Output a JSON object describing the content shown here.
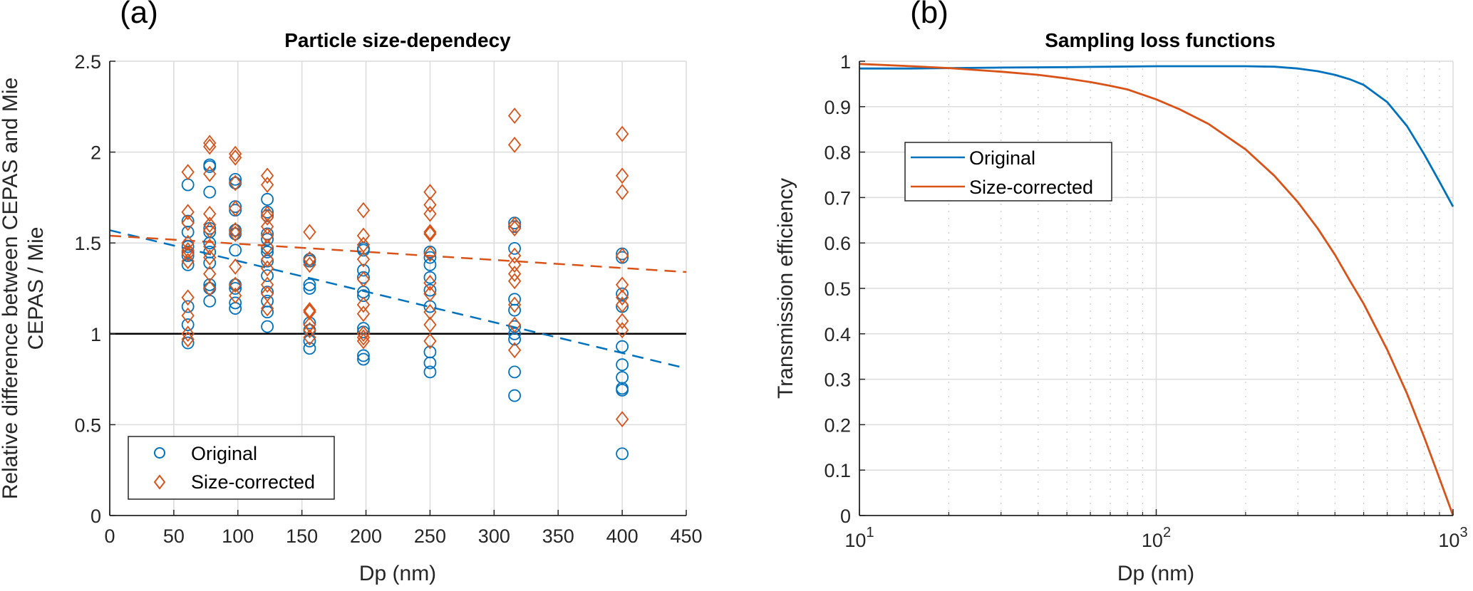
{
  "chart_data": [
    {
      "type": "scatter",
      "panel_label": "(a)",
      "title": "Particle size-dependecy",
      "xlabel": "Dp (nm)",
      "ylabel": [
        "Relative difference between CEPAS and Mie",
        "CEPAS / Mie"
      ],
      "xlim": [
        0,
        450
      ],
      "ylim": [
        0,
        2.5
      ],
      "xticks": [
        0,
        50,
        100,
        150,
        200,
        250,
        300,
        350,
        400,
        450
      ],
      "yticks": [
        0,
        0.5,
        1,
        1.5,
        2,
        2.5
      ],
      "ytick_labels": [
        "0",
        "0.5",
        "1",
        "1.5",
        "2",
        "2.5"
      ],
      "grid": true,
      "legend_position": "bottom-left",
      "reference_line": {
        "y": 1,
        "color": "#000000",
        "style": "solid"
      },
      "series": [
        {
          "name": "Original",
          "marker": "circle",
          "color": "#0072BD",
          "points": [
            [
              61,
              1.82
            ],
            [
              61,
              1.62
            ],
            [
              61,
              1.56
            ],
            [
              61,
              1.48
            ],
            [
              61,
              1.45
            ],
            [
              61,
              1.43
            ],
            [
              61,
              1.38
            ],
            [
              61,
              1.15
            ],
            [
              61,
              1.05
            ],
            [
              61,
              0.95
            ],
            [
              78,
              1.93
            ],
            [
              78,
              1.92
            ],
            [
              78,
              1.78
            ],
            [
              78,
              1.58
            ],
            [
              78,
              1.56
            ],
            [
              78,
              1.5
            ],
            [
              78,
              1.45
            ],
            [
              78,
              1.39
            ],
            [
              78,
              1.27
            ],
            [
              78,
              1.25
            ],
            [
              78,
              1.18
            ],
            [
              98,
              1.85
            ],
            [
              98,
              1.83
            ],
            [
              98,
              1.7
            ],
            [
              98,
              1.68
            ],
            [
              98,
              1.57
            ],
            [
              98,
              1.55
            ],
            [
              98,
              1.46
            ],
            [
              98,
              1.27
            ],
            [
              98,
              1.25
            ],
            [
              98,
              1.17
            ],
            [
              98,
              1.14
            ],
            [
              123,
              1.74
            ],
            [
              123,
              1.67
            ],
            [
              123,
              1.65
            ],
            [
              123,
              1.55
            ],
            [
              123,
              1.52
            ],
            [
              123,
              1.47
            ],
            [
              123,
              1.45
            ],
            [
              123,
              1.4
            ],
            [
              123,
              1.32
            ],
            [
              123,
              1.23
            ],
            [
              123,
              1.18
            ],
            [
              123,
              1.12
            ],
            [
              123,
              1.04
            ],
            [
              156,
              1.41
            ],
            [
              156,
              1.4
            ],
            [
              156,
              1.27
            ],
            [
              156,
              1.25
            ],
            [
              156,
              1.06
            ],
            [
              156,
              1.02
            ],
            [
              156,
              0.96
            ],
            [
              156,
              0.92
            ],
            [
              198,
              1.47
            ],
            [
              198,
              1.46
            ],
            [
              198,
              1.35
            ],
            [
              198,
              1.31
            ],
            [
              198,
              1.23
            ],
            [
              198,
              1.21
            ],
            [
              198,
              1.03
            ],
            [
              198,
              1.01
            ],
            [
              198,
              0.88
            ],
            [
              198,
              0.86
            ],
            [
              250,
              1.45
            ],
            [
              250,
              1.42
            ],
            [
              250,
              1.38
            ],
            [
              250,
              1.31
            ],
            [
              250,
              1.24
            ],
            [
              250,
              1.15
            ],
            [
              250,
              0.9
            ],
            [
              250,
              0.84
            ],
            [
              250,
              0.79
            ],
            [
              316,
              1.61
            ],
            [
              316,
              1.59
            ],
            [
              316,
              1.47
            ],
            [
              316,
              1.19
            ],
            [
              316,
              1.13
            ],
            [
              316,
              1.04
            ],
            [
              316,
              1.0
            ],
            [
              316,
              0.97
            ],
            [
              316,
              0.79
            ],
            [
              316,
              0.66
            ],
            [
              400,
              1.44
            ],
            [
              400,
              1.42
            ],
            [
              400,
              1.22
            ],
            [
              400,
              1.15
            ],
            [
              400,
              0.93
            ],
            [
              400,
              0.83
            ],
            [
              400,
              0.76
            ],
            [
              400,
              0.7
            ],
            [
              400,
              0.69
            ],
            [
              400,
              0.34
            ]
          ],
          "trend_line": {
            "x": [
              0,
              450
            ],
            "y": [
              1.57,
              0.81
            ],
            "style": "dashed"
          }
        },
        {
          "name": "Size-corrected",
          "marker": "diamond",
          "color": "#D95319",
          "points": [
            [
              61,
              1.89
            ],
            [
              61,
              1.67
            ],
            [
              61,
              1.61
            ],
            [
              61,
              1.5
            ],
            [
              61,
              1.46
            ],
            [
              61,
              1.44
            ],
            [
              61,
              1.4
            ],
            [
              61,
              1.2
            ],
            [
              61,
              1.1
            ],
            [
              61,
              1.0
            ],
            [
              61,
              0.97
            ],
            [
              78,
              2.05
            ],
            [
              78,
              2.03
            ],
            [
              78,
              1.88
            ],
            [
              78,
              1.66
            ],
            [
              78,
              1.6
            ],
            [
              78,
              1.57
            ],
            [
              78,
              1.48
            ],
            [
              78,
              1.42
            ],
            [
              78,
              1.33
            ],
            [
              78,
              1.25
            ],
            [
              98,
              1.99
            ],
            [
              98,
              1.97
            ],
            [
              98,
              1.83
            ],
            [
              98,
              1.69
            ],
            [
              98,
              1.57
            ],
            [
              98,
              1.55
            ],
            [
              98,
              1.37
            ],
            [
              98,
              1.27
            ],
            [
              98,
              1.21
            ],
            [
              123,
              1.87
            ],
            [
              123,
              1.82
            ],
            [
              123,
              1.66
            ],
            [
              123,
              1.64
            ],
            [
              123,
              1.59
            ],
            [
              123,
              1.54
            ],
            [
              123,
              1.48
            ],
            [
              123,
              1.41
            ],
            [
              123,
              1.36
            ],
            [
              123,
              1.27
            ],
            [
              123,
              1.22
            ],
            [
              123,
              1.14
            ],
            [
              156,
              1.56
            ],
            [
              156,
              1.41
            ],
            [
              156,
              1.38
            ],
            [
              156,
              1.13
            ],
            [
              156,
              1.12
            ],
            [
              156,
              1.05
            ],
            [
              156,
              1.02
            ],
            [
              156,
              0.98
            ],
            [
              198,
              1.68
            ],
            [
              198,
              1.54
            ],
            [
              198,
              1.49
            ],
            [
              198,
              1.41
            ],
            [
              198,
              1.3
            ],
            [
              198,
              1.16
            ],
            [
              198,
              1.11
            ],
            [
              198,
              1.0
            ],
            [
              198,
              0.98
            ],
            [
              198,
              0.96
            ],
            [
              250,
              1.78
            ],
            [
              250,
              1.71
            ],
            [
              250,
              1.66
            ],
            [
              250,
              1.56
            ],
            [
              250,
              1.55
            ],
            [
              250,
              1.44
            ],
            [
              250,
              1.28
            ],
            [
              250,
              1.22
            ],
            [
              250,
              1.12
            ],
            [
              250,
              1.05
            ],
            [
              250,
              0.96
            ],
            [
              316,
              2.2
            ],
            [
              316,
              2.04
            ],
            [
              316,
              1.6
            ],
            [
              316,
              1.58
            ],
            [
              316,
              1.43
            ],
            [
              316,
              1.38
            ],
            [
              316,
              1.33
            ],
            [
              316,
              1.29
            ],
            [
              316,
              1.16
            ],
            [
              316,
              1.05
            ],
            [
              316,
              0.91
            ],
            [
              400,
              2.1
            ],
            [
              400,
              1.87
            ],
            [
              400,
              1.78
            ],
            [
              400,
              1.43
            ],
            [
              400,
              1.27
            ],
            [
              400,
              1.2
            ],
            [
              400,
              1.16
            ],
            [
              400,
              1.07
            ],
            [
              400,
              1.02
            ],
            [
              400,
              0.53
            ]
          ],
          "trend_line": {
            "x": [
              0,
              450
            ],
            "y": [
              1.54,
              1.34
            ],
            "style": "dashed"
          }
        }
      ]
    },
    {
      "type": "line",
      "panel_label": "(b)",
      "title": "Sampling loss functions",
      "xlabel": "Dp (nm)",
      "ylabel": "Transmission efficiency",
      "xscale": "log",
      "xlim": [
        10,
        1000
      ],
      "ylim": [
        0,
        1
      ],
      "xticks": [
        10,
        100,
        1000
      ],
      "xtick_labels": [
        {
          "base": "10",
          "exp": "1"
        },
        {
          "base": "10",
          "exp": "2"
        },
        {
          "base": "10",
          "exp": "3"
        }
      ],
      "yticks": [
        0,
        0.1,
        0.2,
        0.3,
        0.4,
        0.5,
        0.6,
        0.7,
        0.8,
        0.9,
        1
      ],
      "ytick_labels": [
        "0",
        "0.1",
        "0.2",
        "0.3",
        "0.4",
        "0.5",
        "0.6",
        "0.7",
        "0.8",
        "0.9",
        "1"
      ],
      "grid": true,
      "minor_grid": true,
      "legend_position": "top-left",
      "series": [
        {
          "name": "Original",
          "color": "#0072BD",
          "x": [
            10,
            15,
            20,
            30,
            50,
            70,
            100,
            150,
            200,
            250,
            300,
            350,
            400,
            450,
            500,
            600,
            700,
            800,
            900,
            1000
          ],
          "y": [
            0.984,
            0.984,
            0.985,
            0.986,
            0.987,
            0.988,
            0.989,
            0.989,
            0.989,
            0.988,
            0.984,
            0.978,
            0.97,
            0.96,
            0.948,
            0.91,
            0.857,
            0.795,
            0.735,
            0.68
          ]
        },
        {
          "name": "Size-corrected",
          "color": "#D95319",
          "x": [
            10,
            15,
            20,
            30,
            40,
            50,
            60,
            70,
            80,
            100,
            120,
            150,
            200,
            250,
            300,
            350,
            400,
            450,
            500,
            600,
            700,
            800,
            900,
            1000
          ],
          "y": [
            0.994,
            0.989,
            0.985,
            0.977,
            0.97,
            0.962,
            0.954,
            0.946,
            0.938,
            0.916,
            0.894,
            0.862,
            0.806,
            0.748,
            0.69,
            0.632,
            0.574,
            0.516,
            0.466,
            0.365,
            0.268,
            0.172,
            0.082,
            0.0
          ]
        }
      ]
    }
  ]
}
